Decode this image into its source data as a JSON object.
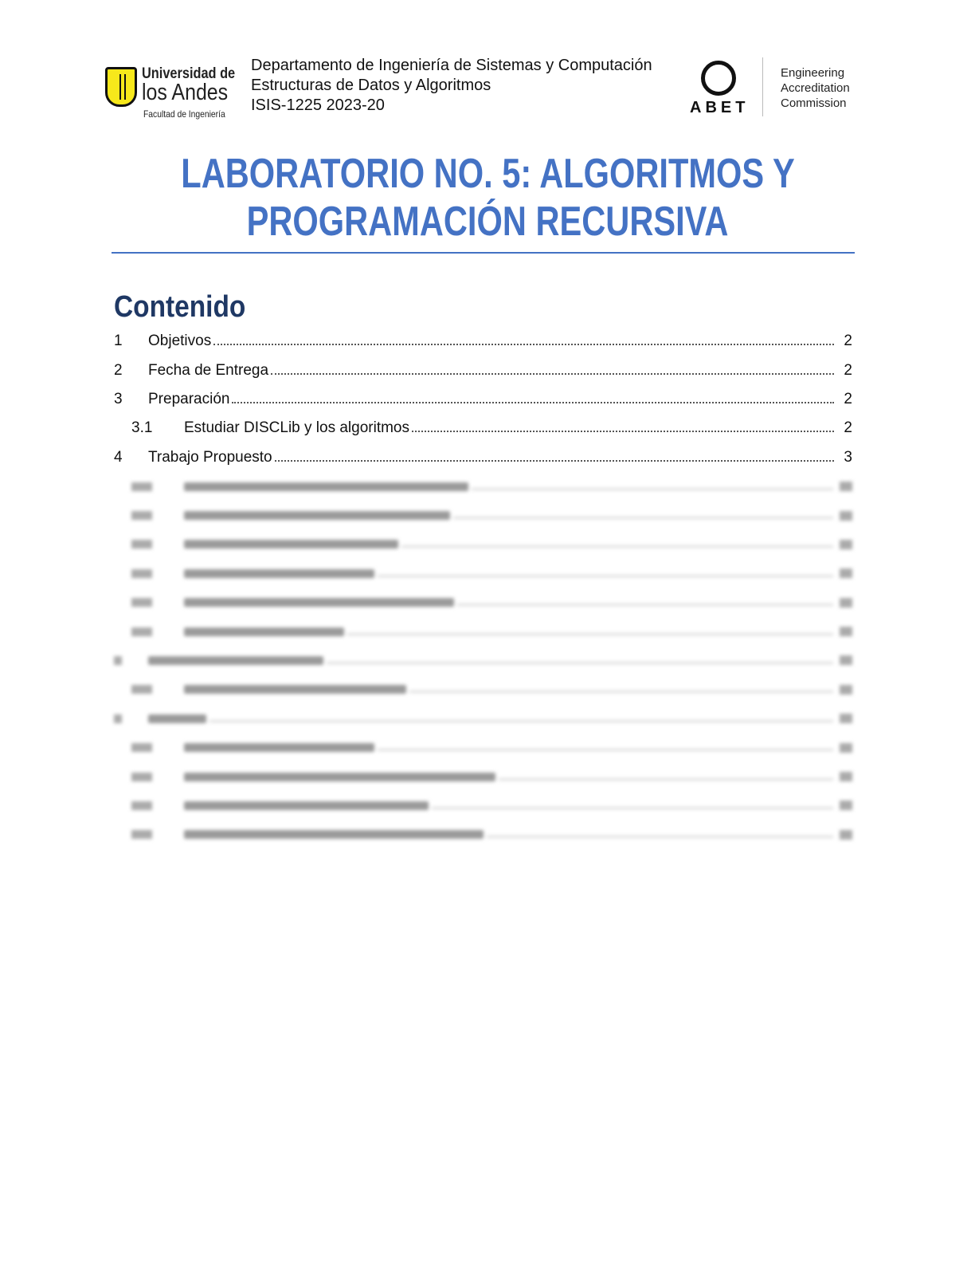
{
  "header": {
    "university_logo": {
      "line1": "Universidad de",
      "line2": "los Andes",
      "line3": "Facultad de Ingeniería"
    },
    "lines": [
      "Departamento de Ingeniería de Sistemas y Computación",
      "Estructuras de Datos y Algoritmos",
      "ISIS-1225 2023-20"
    ],
    "abet_logo": {
      "word": "ABET",
      "lines": [
        "Engineering",
        "Accreditation",
        "Commission"
      ]
    }
  },
  "title": {
    "line1": "LABORATORIO NO. 5: ALGORITMOS Y",
    "line2": "PROGRAMACIÓN RECURSIVA"
  },
  "colors": {
    "title": "#4472C4",
    "heading": "#1F3864"
  },
  "toc": {
    "heading": "Contenido",
    "entries": [
      {
        "num": "1",
        "label": "Objetivos",
        "page": "2",
        "level": 1
      },
      {
        "num": "2",
        "label": "Fecha de Entrega",
        "page": "2",
        "level": 1
      },
      {
        "num": "3",
        "label": "Preparación",
        "page": "2",
        "level": 1
      },
      {
        "num": "3.1",
        "label": "Estudiar DISCLib y los algoritmos",
        "page": "2",
        "level": 2
      },
      {
        "num": "4",
        "label": "Trabajo Propuesto",
        "page": "3",
        "level": 1
      }
    ],
    "blurred_entry_levels": [
      2,
      2,
      2,
      2,
      2,
      2,
      1,
      2,
      1,
      2,
      2,
      2,
      2
    ]
  }
}
